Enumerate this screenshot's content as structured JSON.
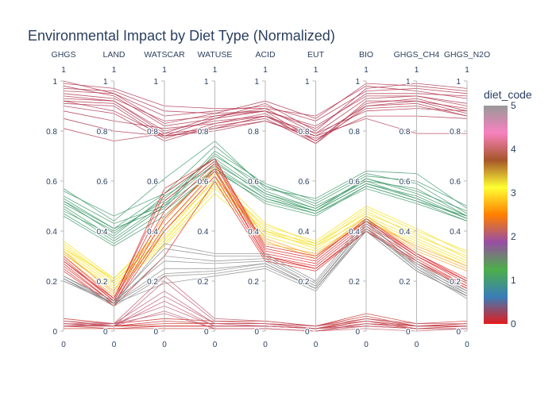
{
  "chart_data": {
    "type": "parallel_coordinates",
    "title": "Environmental Impact by Diet Type (Normalized)",
    "dimensions": [
      "GHGS",
      "LAND",
      "WATSCAR",
      "WATUSE",
      "ACID",
      "EUT",
      "BIO",
      "GHGS_CH4",
      "GHGS_N2O"
    ],
    "range": [
      0,
      1
    ],
    "axis_top_label": "1",
    "axis_bottom_label": "0",
    "ticks": [
      0,
      0.2,
      0.4,
      0.6,
      0.8,
      1
    ],
    "tick_labels": [
      "0",
      "0.2",
      "0.4",
      "0.6",
      "0.8",
      "1"
    ],
    "colorbar": {
      "title": "diet_code",
      "min": 0,
      "max": 5,
      "ticks": [
        "0",
        "1",
        "2",
        "3",
        "4",
        "5"
      ],
      "colors": [
        "#e41a1c",
        "#377eb8",
        "#4daf4a",
        "#984ea3",
        "#ff7f00",
        "#ffff33",
        "#a65628",
        "#f781bf",
        "#999999"
      ]
    },
    "groups": [
      {
        "diet_code_range": [
          4.4,
          4.8
        ],
        "color": "#b2364f",
        "lines": [
          [
            0.93,
            0.92,
            0.8,
            0.84,
            0.86,
            0.78,
            0.9,
            0.92,
            0.89
          ],
          [
            0.92,
            0.91,
            0.78,
            0.85,
            0.88,
            0.76,
            0.91,
            0.93,
            0.88
          ],
          [
            0.91,
            0.9,
            0.77,
            0.83,
            0.87,
            0.75,
            0.92,
            0.92,
            0.87
          ],
          [
            0.9,
            0.87,
            0.76,
            0.82,
            0.85,
            0.75,
            0.9,
            0.91,
            0.86
          ],
          [
            0.94,
            0.92,
            0.79,
            0.86,
            0.89,
            0.79,
            0.93,
            0.94,
            0.9
          ],
          [
            0.85,
            0.8,
            0.78,
            0.8,
            0.84,
            0.77,
            0.86,
            0.86,
            0.85
          ],
          [
            0.81,
            0.76,
            0.79,
            0.81,
            0.84,
            0.78,
            0.85,
            0.79,
            0.79
          ],
          [
            0.88,
            0.84,
            0.81,
            0.83,
            0.86,
            0.79,
            0.88,
            0.89,
            0.88
          ],
          [
            0.95,
            0.93,
            0.84,
            0.86,
            0.88,
            0.82,
            0.94,
            0.94,
            0.91
          ],
          [
            0.98,
            0.94,
            0.82,
            0.85,
            0.91,
            0.8,
            0.97,
            0.99,
            0.97
          ],
          [
            0.96,
            0.95,
            0.86,
            0.88,
            0.9,
            0.84,
            0.96,
            0.97,
            0.95
          ],
          [
            0.97,
            0.96,
            0.88,
            0.87,
            0.92,
            0.85,
            0.99,
            0.98,
            0.96
          ],
          [
            0.99,
            0.97,
            0.9,
            0.89,
            0.89,
            0.86,
            0.98,
            0.96,
            0.93
          ],
          [
            0.92,
            0.88,
            0.78,
            0.81,
            0.86,
            0.76,
            0.89,
            0.9,
            0.86
          ],
          [
            1.0,
            0.95,
            0.83,
            0.87,
            0.88,
            0.81,
            0.95,
            0.95,
            0.94
          ]
        ]
      },
      {
        "diet_code_range": [
          1.1,
          1.4
        ],
        "color": "#3f9a6a",
        "lines": [
          [
            0.57,
            0.44,
            0.61,
            0.76,
            0.57,
            0.53,
            0.64,
            0.63,
            0.49
          ],
          [
            0.56,
            0.46,
            0.55,
            0.74,
            0.58,
            0.51,
            0.62,
            0.6,
            0.5
          ],
          [
            0.54,
            0.43,
            0.5,
            0.72,
            0.59,
            0.52,
            0.63,
            0.59,
            0.47
          ],
          [
            0.53,
            0.41,
            0.49,
            0.71,
            0.56,
            0.49,
            0.61,
            0.56,
            0.48
          ],
          [
            0.52,
            0.39,
            0.53,
            0.7,
            0.58,
            0.5,
            0.6,
            0.57,
            0.46
          ],
          [
            0.52,
            0.41,
            0.55,
            0.69,
            0.55,
            0.48,
            0.61,
            0.55,
            0.46
          ],
          [
            0.51,
            0.4,
            0.52,
            0.68,
            0.54,
            0.48,
            0.59,
            0.54,
            0.45
          ],
          [
            0.5,
            0.37,
            0.51,
            0.67,
            0.55,
            0.49,
            0.6,
            0.53,
            0.45
          ],
          [
            0.48,
            0.38,
            0.54,
            0.66,
            0.53,
            0.47,
            0.58,
            0.52,
            0.44
          ],
          [
            0.47,
            0.35,
            0.48,
            0.64,
            0.52,
            0.47,
            0.57,
            0.51,
            0.44
          ],
          [
            0.46,
            0.34,
            0.46,
            0.65,
            0.51,
            0.46,
            0.58,
            0.52,
            0.46
          ],
          [
            0.49,
            0.36,
            0.5,
            0.65,
            0.53,
            0.48,
            0.59,
            0.53,
            0.45
          ]
        ]
      },
      {
        "diet_code_range": [
          2.9,
          3.1
        ],
        "color": "#f5e11e",
        "lines": [
          [
            0.36,
            0.21,
            0.42,
            0.63,
            0.43,
            0.35,
            0.49,
            0.4,
            0.32
          ],
          [
            0.34,
            0.2,
            0.38,
            0.61,
            0.41,
            0.34,
            0.48,
            0.38,
            0.3
          ],
          [
            0.33,
            0.19,
            0.36,
            0.59,
            0.4,
            0.33,
            0.46,
            0.37,
            0.28
          ],
          [
            0.32,
            0.18,
            0.35,
            0.57,
            0.39,
            0.34,
            0.45,
            0.36,
            0.27
          ],
          [
            0.31,
            0.17,
            0.34,
            0.55,
            0.38,
            0.32,
            0.44,
            0.35,
            0.26
          ],
          [
            0.35,
            0.2,
            0.37,
            0.58,
            0.4,
            0.35,
            0.47,
            0.39,
            0.29
          ],
          [
            0.33,
            0.21,
            0.4,
            0.6,
            0.42,
            0.36,
            0.5,
            0.41,
            0.31
          ]
        ]
      },
      {
        "diet_code_range": [
          3.4,
          3.6
        ],
        "color": "#f5a623",
        "lines": [
          [
            0.32,
            0.15,
            0.44,
            0.66,
            0.37,
            0.3,
            0.46,
            0.33,
            0.25
          ],
          [
            0.3,
            0.14,
            0.4,
            0.62,
            0.36,
            0.29,
            0.45,
            0.32,
            0.24
          ],
          [
            0.31,
            0.16,
            0.46,
            0.64,
            0.35,
            0.31,
            0.44,
            0.34,
            0.26
          ]
        ]
      },
      {
        "diet_code_range": [
          0.0,
          0.2
        ],
        "color": "#df2626",
        "lines": [
          [
            0.3,
            0.13,
            0.57,
            0.69,
            0.33,
            0.29,
            0.45,
            0.31,
            0.21
          ],
          [
            0.29,
            0.12,
            0.52,
            0.68,
            0.32,
            0.28,
            0.44,
            0.3,
            0.2
          ],
          [
            0.28,
            0.12,
            0.48,
            0.67,
            0.31,
            0.27,
            0.43,
            0.3,
            0.19
          ],
          [
            0.27,
            0.11,
            0.45,
            0.65,
            0.3,
            0.26,
            0.42,
            0.29,
            0.18
          ],
          [
            0.26,
            0.11,
            0.42,
            0.64,
            0.3,
            0.25,
            0.41,
            0.28,
            0.18
          ],
          [
            0.25,
            0.1,
            0.4,
            0.62,
            0.29,
            0.25,
            0.4,
            0.28,
            0.17
          ],
          [
            0.24,
            0.1,
            0.3,
            0.6,
            0.28,
            0.24,
            0.4,
            0.27,
            0.17
          ],
          [
            0.28,
            0.13,
            0.55,
            0.69,
            0.34,
            0.3,
            0.44,
            0.31,
            0.2
          ]
        ]
      },
      {
        "diet_code_range": [
          4.9,
          5.0
        ],
        "color": "#8c8c8c",
        "lines": [
          [
            0.22,
            0.12,
            0.33,
            0.3,
            0.3,
            0.19,
            0.44,
            0.26,
            0.16
          ],
          [
            0.21,
            0.11,
            0.3,
            0.28,
            0.29,
            0.18,
            0.43,
            0.27,
            0.15
          ],
          [
            0.22,
            0.12,
            0.28,
            0.27,
            0.28,
            0.18,
            0.42,
            0.25,
            0.15
          ],
          [
            0.21,
            0.11,
            0.25,
            0.25,
            0.27,
            0.17,
            0.41,
            0.26,
            0.14
          ],
          [
            0.2,
            0.11,
            0.23,
            0.24,
            0.27,
            0.17,
            0.4,
            0.24,
            0.14
          ],
          [
            0.21,
            0.1,
            0.22,
            0.23,
            0.26,
            0.17,
            0.41,
            0.25,
            0.13
          ],
          [
            0.2,
            0.11,
            0.19,
            0.22,
            0.25,
            0.16,
            0.4,
            0.24,
            0.14
          ],
          [
            0.22,
            0.11,
            0.35,
            0.31,
            0.31,
            0.2,
            0.45,
            0.28,
            0.16
          ]
        ]
      },
      {
        "diet_code_range": [
          0.1,
          0.3
        ],
        "color": "#c9302c",
        "lines": [
          [
            0.05,
            0.03,
            0.05,
            0.04,
            0.04,
            0.02,
            0.07,
            0.03,
            0.04
          ],
          [
            0.04,
            0.02,
            0.04,
            0.03,
            0.03,
            0.02,
            0.06,
            0.02,
            0.03
          ],
          [
            0.03,
            0.02,
            0.03,
            0.03,
            0.03,
            0.01,
            0.05,
            0.02,
            0.03
          ],
          [
            0.02,
            0.01,
            0.02,
            0.02,
            0.02,
            0.01,
            0.04,
            0.01,
            0.02
          ],
          [
            0.01,
            0.01,
            0.01,
            0.01,
            0.01,
            0.0,
            0.03,
            0.01,
            0.01
          ],
          [
            0.02,
            0.02,
            0.02,
            0.02,
            0.02,
            0.01,
            0.04,
            0.02,
            0.02
          ]
        ]
      },
      {
        "diet_code_range": [
          4.3,
          4.6
        ],
        "color": "#c25b6d",
        "lines": [
          [
            0.04,
            0.03,
            0.22,
            0.05,
            0.04,
            0.02,
            0.05,
            0.03,
            0.03
          ],
          [
            0.03,
            0.02,
            0.2,
            0.04,
            0.03,
            0.02,
            0.04,
            0.02,
            0.02
          ],
          [
            0.03,
            0.03,
            0.16,
            0.03,
            0.03,
            0.01,
            0.03,
            0.02,
            0.02
          ],
          [
            0.02,
            0.02,
            0.14,
            0.03,
            0.02,
            0.01,
            0.03,
            0.02,
            0.02
          ],
          [
            0.03,
            0.02,
            0.12,
            0.02,
            0.02,
            0.01,
            0.02,
            0.01,
            0.01
          ],
          [
            0.02,
            0.03,
            0.1,
            0.02,
            0.02,
            0.01,
            0.02,
            0.01,
            0.01
          ],
          [
            0.03,
            0.02,
            0.08,
            0.01,
            0.01,
            0.0,
            0.02,
            0.01,
            0.01
          ],
          [
            0.02,
            0.03,
            0.07,
            0.01,
            0.01,
            0.0,
            0.01,
            0.0,
            0.01
          ]
        ]
      }
    ]
  }
}
